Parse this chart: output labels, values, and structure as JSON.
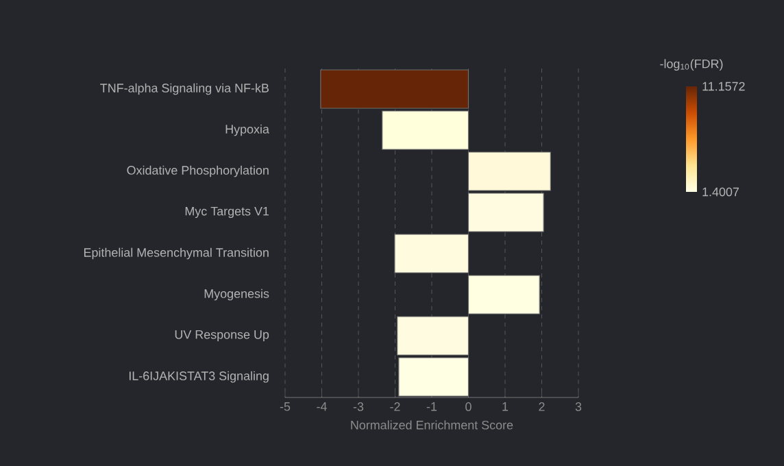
{
  "chart_data": {
    "type": "bar",
    "orientation": "horizontal",
    "categories": [
      "TNF-alpha Signaling via NF-kB",
      "Hypoxia",
      "Oxidative Phosphorylation",
      "Myc Targets V1",
      "Epithelial Mesenchymal Transition",
      "Myogenesis",
      "UV Response Up",
      "IL-6IJAKISTAT3 Signaling"
    ],
    "values": [
      -4.03,
      -2.35,
      2.24,
      2.05,
      -2.01,
      1.94,
      -1.94,
      -1.9
    ],
    "colors": [
      "#662506",
      "#ffffdc",
      "#fff9da",
      "#fffbe0",
      "#fffbdf",
      "#ffffe2",
      "#fffbe0",
      "#ffffe4"
    ],
    "xlabel": "Normalized Enrichment Score",
    "xlim": [
      -5,
      3
    ],
    "xticks": [
      -5,
      -4,
      -3,
      -2,
      -1,
      0,
      1,
      2,
      3
    ],
    "clabel": "-log$_{10}$(FDR)",
    "clim": [
      1.4007,
      11.1572
    ],
    "cticks": [
      1.4007,
      11.1572
    ],
    "grid": "x"
  }
}
